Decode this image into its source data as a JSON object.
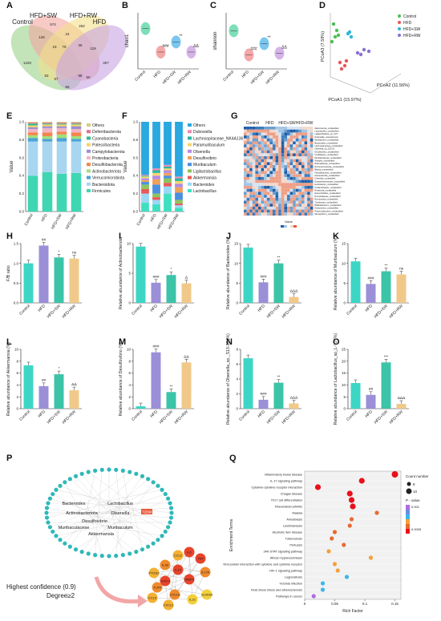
{
  "panel_letters": [
    "A",
    "B",
    "C",
    "D",
    "E",
    "F",
    "G",
    "H",
    "I",
    "J",
    "K",
    "L",
    "M",
    "N",
    "O",
    "P",
    "Q"
  ],
  "venn": {
    "sets": [
      "Control",
      "HFD+SW",
      "HFD+RW",
      "HFD"
    ],
    "counts": [
      "1220",
      "126",
      "574",
      "262",
      "307",
      "24",
      "79",
      "19",
      "36",
      "83",
      "57",
      "60",
      "98",
      "65",
      "119"
    ]
  },
  "group_labels": [
    "Control",
    "HFD",
    "HFD+SW",
    "HFD+RW"
  ],
  "pcoa": {
    "legend": [
      "Control",
      "HFD",
      "HFD+SW",
      "HFD+RW"
    ],
    "xlabel": "PCoA1 (15.97%)",
    "ylabel": "PCoA3 (7.59%)",
    "zlabel": "PCoA2 (11.56%)"
  },
  "phylum_legend": [
    "Others",
    "Deferribacterota",
    "Cyanobacteria",
    "Patescibacteria",
    "Campylobacterota",
    "Proteobacteria",
    "Desulfobacterota",
    "Actinobacteriota",
    "Verrucomicrobiota",
    "Bacteroidota",
    "Firmicutes"
  ],
  "genus_legend": [
    "Others",
    "Dubosiella",
    "Lachnospiraceae_NK4A136_group",
    "Paramuribaculum",
    "Olsenella",
    "Desulfovibrio",
    "Muribaculum",
    "Ligilactobacillus",
    "Akkermansia",
    "Bacteroides",
    "Lactobacillus"
  ],
  "stack_ylabel": "Value",
  "heatmap_groups": [
    "Control",
    "HFD",
    "HFD+SW",
    "HFD+RW"
  ],
  "taxa_names": [
    "Akkermansia_unclassified",
    "Lactobacillus_unclassified",
    "Ligilactobacillus_sp_UCT",
    "Dubosiella_newyorkensis",
    "Muribaculum_unclassified",
    "Bacteroides_unclassified",
    "Lachnospiraceae_unclassified",
    "Olsenella_sp_S13-10",
    "Desulfovibrio_unclassified",
    "Oscillibacter_unclassified",
    "Muribaculaceae_unclassified",
    "Alistipes_unclassified",
    "Rikenellaceae_unclassified",
    "Ruminococcaceae_unclassified",
    "Blautia_unclassified",
    "Faecalibaculum_unclassified",
    "Parasutterella_unclassified",
    "Clostridia_unclassified",
    "Erysipelotrichaceae_unclassified",
    "Helicobacter_unclassified",
    "Colidextribacter_unclassified",
    "Roseburia_unclassified",
    "Enterorhabdus_unclassified",
    "Prevotellaceae_unclassified",
    "Romboutsia_unclassified",
    "Turicibacter_unclassified",
    "Bifidobacterium_unclassified",
    "Eubacterium_unclassified",
    "Paramuribaculum_unclassified",
    "Mucispirillum_unclassified"
  ],
  "heatmap_legend_title": "Value",
  "bar_panels": [
    {
      "letter": "H",
      "ylabel": "F/B ratio",
      "values": [
        1.0,
        1.45,
        1.15,
        1.12
      ],
      "ymax": 1.5,
      "ticks": [
        "0.0",
        "0.5",
        "1.0",
        "1.5"
      ],
      "sig": [
        "",
        "##",
        "*",
        "ns"
      ]
    },
    {
      "letter": "I",
      "ylabel": "Relative abundance of Actinobacteriota",
      "values": [
        9.5,
        3.4,
        4.7,
        3.3
      ],
      "ymax": 10,
      "ticks": [
        "0",
        "5",
        "10"
      ],
      "sig": [
        "",
        "###",
        "*",
        "Δ"
      ]
    },
    {
      "letter": "J",
      "ylabel": "Relative abundance of Bacteroides (%)",
      "values": [
        14.0,
        5.2,
        10.0,
        1.5
      ],
      "ymax": 15,
      "ticks": [
        "0",
        "5",
        "10",
        "15"
      ],
      "sig": [
        "",
        "###",
        "**",
        "ΔΔΔ"
      ]
    },
    {
      "letter": "K",
      "ylabel": "Relative abundance of Muribaculum (%)",
      "values": [
        10.5,
        4.8,
        8.0,
        7.2
      ],
      "ymax": 15,
      "ticks": [
        "0",
        "5",
        "10",
        "15"
      ],
      "sig": [
        "",
        "###",
        "**",
        "ns"
      ]
    },
    {
      "letter": "L",
      "ylabel": "Relative abundance of Akkermansia (%)",
      "values": [
        7.3,
        3.8,
        5.8,
        3.1
      ],
      "ymax": 10,
      "ticks": [
        "0",
        "2",
        "4",
        "6",
        "8",
        "10"
      ],
      "sig": [
        "",
        "##",
        "*",
        "ΔΔ"
      ]
    },
    {
      "letter": "M",
      "ylabel": "Relative abundance of Desulfovibrio (%)",
      "values": [
        0.4,
        9.5,
        2.8,
        7.8
      ],
      "ymax": 10,
      "ticks": [
        "0",
        "2",
        "4",
        "6",
        "8",
        "10"
      ],
      "sig": [
        "",
        "###",
        "**",
        "ΔΔ"
      ]
    },
    {
      "letter": "N",
      "ylabel": "Relative abundance of Olsenella_sp._S13-10 (%)",
      "values": [
        6.8,
        1.2,
        3.5,
        0.7
      ],
      "ymax": 8,
      "ticks": [
        "0",
        "2",
        "4",
        "6",
        "8"
      ],
      "sig": [
        "",
        "###",
        "**",
        "ΔΔΔ"
      ]
    },
    {
      "letter": "O",
      "ylabel": "Relative abundance of Lactobacillus_sp_L-YJ (%)",
      "values": [
        10.8,
        5.8,
        19.5,
        2.0
      ],
      "ymax": 25,
      "ticks": [
        "0",
        "5",
        "10",
        "15",
        "20",
        "25"
      ],
      "sig": [
        "",
        "##",
        "***",
        "ΔΔΔ"
      ]
    }
  ],
  "violin_panels": [
    {
      "letter": "B",
      "ylabel": "chao1",
      "sig": [
        "",
        "###",
        "**",
        "ΔΔ"
      ]
    },
    {
      "letter": "C",
      "ylabel": "shannon",
      "sig": [
        "",
        "###",
        "**",
        "ΔΔ"
      ]
    }
  ],
  "network": {
    "central": [
      "Bacteroides",
      "Lactobacillus",
      "Actinobacteriota",
      "Olsenella",
      "Muribaculaceae",
      "Muribaculum",
      "Akkermansia",
      "Desulfovibrio"
    ],
    "highlight": "T2DM",
    "caption1": "Highest confidence (0.9)",
    "caption2": "Degree≥2",
    "hubs": [
      "CCL2",
      "IL1B",
      "IL6",
      "TNF",
      "IL10",
      "PTGS2",
      "STAT3",
      "TLR4",
      "CCL5",
      "CXCL8",
      "MMP9",
      "IL17A",
      "CXCL2",
      "IL22",
      "S100A9"
    ]
  },
  "kegg": {
    "ylabel": "Enrichment Terms",
    "xlabel": "Rich Factor",
    "xticks": [
      "0",
      "0.05",
      "0.1",
      "0.15"
    ],
    "terms": [
      "Inflammatory bowel disease",
      "IL-17 signaling pathway",
      "Cytokine-cytokine receptor interaction",
      "Chagas disease",
      "Th17 cell differentiation",
      "Rheumatoid arthritis",
      "Malaria",
      "Amoebiasis",
      "Leishmaniasis",
      "Alcoholic liver disease",
      "Tuberculosis",
      "Pertussis",
      "JAK-STAT signaling pathway",
      "African trypanosomiasis",
      "Viral protein interaction with cytokine and cytokine receptor",
      "HIF-1 signaling pathway",
      "Legionellosis",
      "Yersinia infection",
      "Fluid shear stress and atherosclerosis",
      "Pathways in cancer"
    ],
    "rich": [
      0.15,
      0.095,
      0.022,
      0.075,
      0.078,
      0.08,
      0.12,
      0.078,
      0.075,
      0.05,
      0.045,
      0.065,
      0.04,
      0.11,
      0.05,
      0.055,
      0.07,
      0.03,
      0.03,
      0.015
    ],
    "count_legend_title": "Count number",
    "count_legend": [
      "8",
      "10"
    ],
    "p_legend_title": "P - value",
    "p_ticks": [
      "0.001",
      "0.0005"
    ]
  },
  "colors": {
    "control": "#3dd6c5",
    "hfd": "#9b8fd8",
    "sw": "#3cc4a8",
    "rw": "#f0c98a"
  }
}
